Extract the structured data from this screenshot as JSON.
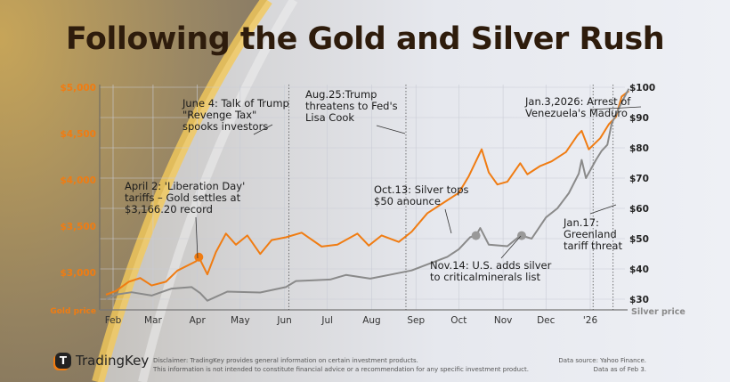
{
  "title": "Following the Gold and Silver Rush",
  "chart_data": {
    "type": "line",
    "title": "Following the Gold and Silver Rush",
    "x_ticks": [
      "Feb",
      "Mar",
      "Apr",
      "May",
      "Jun",
      "Jul",
      "Aug",
      "Sep",
      "Oct",
      "Nov",
      "Dec",
      "'26"
    ],
    "x_tick_dates": [
      "2025-02-01",
      "2025-03-01",
      "2025-04-01",
      "2025-05-01",
      "2025-06-01",
      "2025-07-01",
      "2025-08-01",
      "2025-09-01",
      "2025-10-01",
      "2025-11-01",
      "2025-12-01",
      "2026-01-01"
    ],
    "left_axis": {
      "label": "Gold price",
      "ticks": [
        "$3,000",
        "$3,500",
        "$4,000",
        "$4,500",
        "$5,000"
      ],
      "tick_values": [
        3000,
        3500,
        4000,
        4500,
        5000
      ],
      "color": "#f07c12"
    },
    "right_axis": {
      "label": "Silver price",
      "ticks": [
        "$30",
        "$40",
        "$50",
        "$60",
        "$70",
        "$80",
        "$90",
        "$100"
      ],
      "tick_values": [
        30,
        40,
        50,
        60,
        70,
        80,
        90,
        100
      ]
    },
    "grid": true,
    "series": [
      {
        "axis": "left",
        "color": "#f07c12",
        "points": [
          [
            "2025-01-27",
            2760
          ],
          [
            "2025-02-03",
            2800
          ],
          [
            "2025-02-12",
            2900
          ],
          [
            "2025-02-20",
            2940
          ],
          [
            "2025-02-28",
            2860
          ],
          [
            "2025-03-10",
            2900
          ],
          [
            "2025-03-18",
            3020
          ],
          [
            "2025-03-31",
            3120
          ],
          [
            "2025-04-02",
            3166
          ],
          [
            "2025-04-08",
            2980
          ],
          [
            "2025-04-14",
            3220
          ],
          [
            "2025-04-21",
            3420
          ],
          [
            "2025-04-28",
            3300
          ],
          [
            "2025-05-06",
            3400
          ],
          [
            "2025-05-15",
            3200
          ],
          [
            "2025-05-23",
            3350
          ],
          [
            "2025-06-02",
            3380
          ],
          [
            "2025-06-13",
            3430
          ],
          [
            "2025-06-27",
            3280
          ],
          [
            "2025-07-08",
            3300
          ],
          [
            "2025-07-22",
            3420
          ],
          [
            "2025-07-30",
            3290
          ],
          [
            "2025-08-08",
            3400
          ],
          [
            "2025-08-20",
            3330
          ],
          [
            "2025-08-29",
            3440
          ],
          [
            "2025-09-09",
            3640
          ],
          [
            "2025-09-23",
            3780
          ],
          [
            "2025-10-01",
            3860
          ],
          [
            "2025-10-08",
            4040
          ],
          [
            "2025-10-17",
            4330
          ],
          [
            "2025-10-22",
            4080
          ],
          [
            "2025-10-28",
            3950
          ],
          [
            "2025-11-04",
            3980
          ],
          [
            "2025-11-13",
            4180
          ],
          [
            "2025-11-18",
            4060
          ],
          [
            "2025-11-27",
            4150
          ],
          [
            "2025-12-05",
            4200
          ],
          [
            "2025-12-15",
            4300
          ],
          [
            "2025-12-23",
            4480
          ],
          [
            "2025-12-26",
            4530
          ],
          [
            "2025-12-31",
            4330
          ],
          [
            "2026-01-08",
            4450
          ],
          [
            "2026-01-14",
            4600
          ],
          [
            "2026-01-19",
            4680
          ],
          [
            "2026-01-23",
            4900
          ],
          [
            "2026-01-28",
            4960
          ]
        ]
      },
      {
        "axis": "right",
        "color": "#8a8a8a",
        "points": [
          [
            "2025-01-27",
            30
          ],
          [
            "2025-02-03",
            31.5
          ],
          [
            "2025-02-14",
            32.3
          ],
          [
            "2025-02-28",
            31.2
          ],
          [
            "2025-03-14",
            33.5
          ],
          [
            "2025-03-28",
            34
          ],
          [
            "2025-04-03",
            32
          ],
          [
            "2025-04-08",
            29.5
          ],
          [
            "2025-04-22",
            32.5
          ],
          [
            "2025-05-15",
            32.2
          ],
          [
            "2025-06-02",
            34
          ],
          [
            "2025-06-09",
            36
          ],
          [
            "2025-06-20",
            36.2
          ],
          [
            "2025-07-03",
            36.5
          ],
          [
            "2025-07-14",
            38
          ],
          [
            "2025-07-31",
            36.8
          ],
          [
            "2025-08-13",
            38
          ],
          [
            "2025-08-29",
            39.5
          ],
          [
            "2025-09-09",
            41.5
          ],
          [
            "2025-09-23",
            44
          ],
          [
            "2025-10-01",
            46.5
          ],
          [
            "2025-10-09",
            50.5
          ],
          [
            "2025-10-13",
            51
          ],
          [
            "2025-10-16",
            53.5
          ],
          [
            "2025-10-22",
            48
          ],
          [
            "2025-11-04",
            47.5
          ],
          [
            "2025-11-13",
            51
          ],
          [
            "2025-11-14",
            51
          ],
          [
            "2025-11-21",
            50
          ],
          [
            "2025-12-01",
            57
          ],
          [
            "2025-12-09",
            60
          ],
          [
            "2025-12-17",
            65
          ],
          [
            "2025-12-24",
            71.5
          ],
          [
            "2025-12-26",
            76
          ],
          [
            "2025-12-29",
            70
          ],
          [
            "2026-01-05",
            76
          ],
          [
            "2026-01-09",
            79
          ],
          [
            "2026-01-13",
            81
          ],
          [
            "2026-01-16",
            88
          ],
          [
            "2026-01-20",
            92
          ],
          [
            "2026-01-23",
            95
          ],
          [
            "2026-01-28",
            99.5
          ]
        ]
      }
    ],
    "markers": [
      {
        "series": "left",
        "date": "2025-04-02",
        "value": 3166
      },
      {
        "series": "right",
        "date": "2025-10-13",
        "value": 51
      },
      {
        "series": "right",
        "date": "2025-11-14",
        "value": 51
      }
    ],
    "annotations": [
      {
        "date": "2025-04-02",
        "text": "April 2: 'Liberation Day'\ntariffs – Gold settles at\n$3,166.20 record"
      },
      {
        "date": "2025-06-04",
        "text": "June 4: Talk of Trump\n\"Revenge Tax\"\nspooks investors"
      },
      {
        "date": "2025-08-25",
        "text": "Aug.25:Trump\nthreatens to Fed's\nLisa Cook"
      },
      {
        "date": "2025-10-13",
        "text": "Oct.13: Silver tops\n$50 anounce"
      },
      {
        "date": "2025-11-14",
        "text": "Nov.14: U.S. adds silver\nto criticalminerals list"
      },
      {
        "date": "2026-01-03",
        "text": "Jan.3,2026: Arrest of\nVenezuela's Maduro"
      },
      {
        "date": "2026-01-17",
        "text": "Jan.17:\nGreenland\ntariff threat"
      }
    ]
  },
  "footer": {
    "brand": "TradingKey",
    "disclaimer_1": "Disclaimer: TradingKey provides general information on certain investment products.",
    "disclaimer_2": "This information is not intended to constitute financial advice or a recommendation for any specific investment product.",
    "source": "Data source: Yahoo Finance.",
    "as_of": "Data as of Feb 3."
  }
}
